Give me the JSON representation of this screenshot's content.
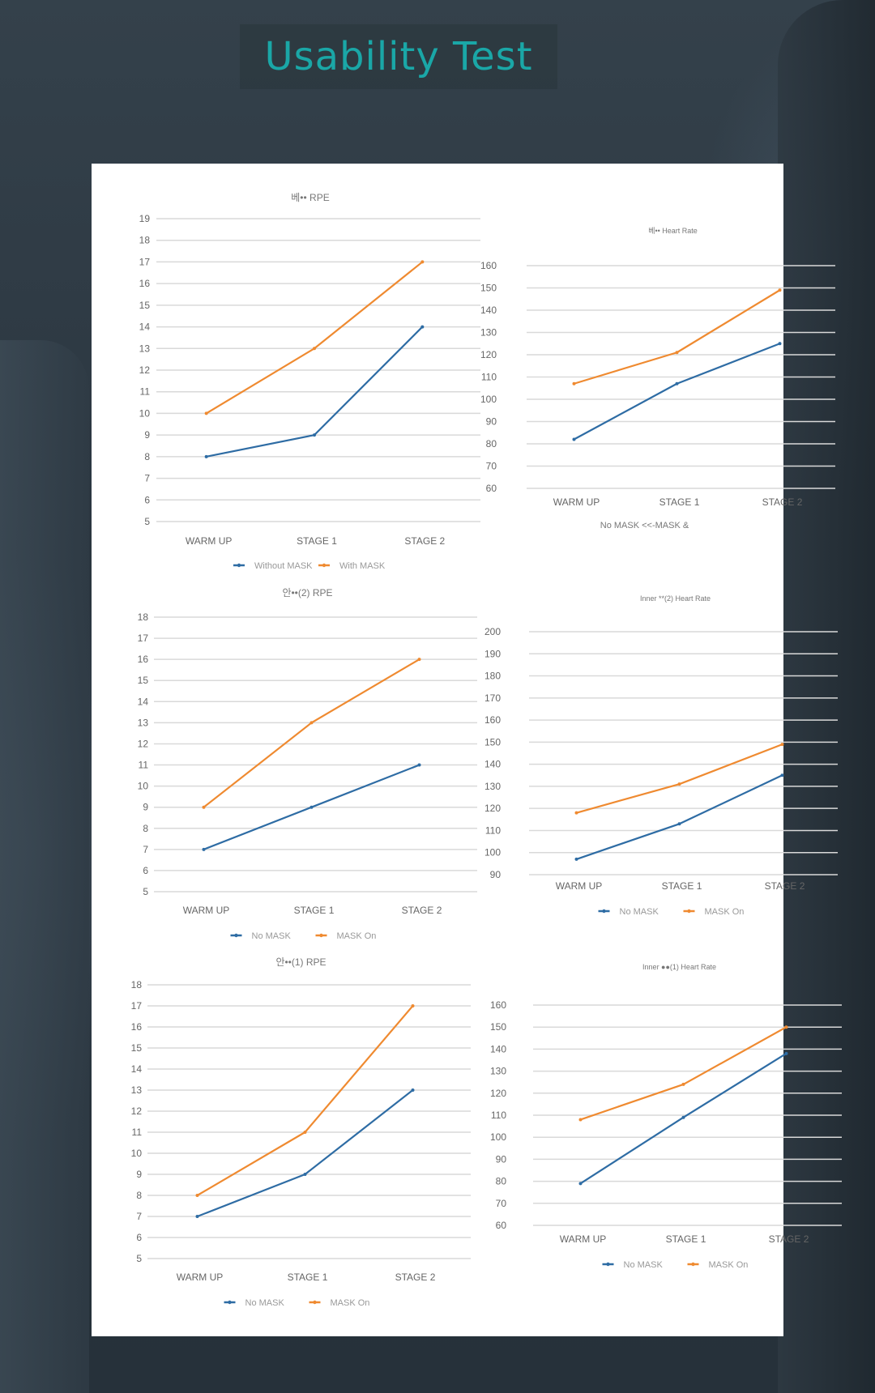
{
  "page": {
    "title": "Usability Test"
  },
  "colors": {
    "series_blue": "#2e6ca4",
    "series_orange": "#ef8a30",
    "title": "#1aa7a7",
    "grid": "#d9d9d9"
  },
  "chart_data": [
    {
      "type": "line",
      "title": "베•• RPE",
      "categories": [
        "WARM UP",
        "STAGE 1",
        "STAGE 2"
      ],
      "ylim": [
        5,
        19
      ],
      "yticks": [
        5,
        6,
        7,
        8,
        9,
        10,
        11,
        12,
        13,
        14,
        15,
        16,
        17,
        18,
        19
      ],
      "series": [
        {
          "name": "Without MASK",
          "values": [
            8,
            9,
            14
          ]
        },
        {
          "name": "With MASK",
          "values": [
            10,
            13,
            17
          ]
        }
      ],
      "grid": true,
      "legend": "bottom"
    },
    {
      "type": "line",
      "title": "베•• Heart Rate",
      "categories": [
        "WARM UP",
        "STAGE 1",
        "STAGE 2"
      ],
      "ylim": [
        60,
        160
      ],
      "yticks": [
        60,
        70,
        80,
        90,
        100,
        110,
        120,
        130,
        140,
        150,
        160
      ],
      "series": [
        {
          "values": [
            82,
            107,
            125
          ]
        },
        {
          "values": [
            107,
            121,
            149
          ]
        }
      ],
      "note": "No MASK <<-MASK &",
      "grid": true
    },
    {
      "type": "line",
      "title": "안••(2) RPE",
      "categories": [
        "WARM UP",
        "STAGE 1",
        "STAGE 2"
      ],
      "ylim": [
        5,
        18
      ],
      "yticks": [
        5,
        6,
        7,
        8,
        9,
        10,
        11,
        12,
        13,
        14,
        15,
        16,
        17,
        18
      ],
      "series": [
        {
          "name": "No MASK",
          "values": [
            7,
            9,
            11
          ]
        },
        {
          "name": "MASK On",
          "values": [
            9,
            13,
            16
          ]
        }
      ],
      "grid": true,
      "legend": "bottom"
    },
    {
      "type": "line",
      "title": "Inner **(2) Heart Rate",
      "categories": [
        "WARM UP",
        "STAGE 1",
        "STAGE 2"
      ],
      "ylim": [
        90,
        200
      ],
      "yticks": [
        90,
        100,
        110,
        120,
        130,
        140,
        150,
        160,
        170,
        180,
        190,
        200
      ],
      "series": [
        {
          "name": "No MASK",
          "values": [
            97,
            113,
            135
          ]
        },
        {
          "name": "MASK On",
          "values": [
            118,
            131,
            149
          ]
        }
      ],
      "grid": true,
      "legend": "bottom"
    },
    {
      "type": "line",
      "title": "안••(1) RPE",
      "categories": [
        "WARM UP",
        "STAGE 1",
        "STAGE 2"
      ],
      "ylim": [
        5,
        18
      ],
      "yticks": [
        5,
        6,
        7,
        8,
        9,
        10,
        11,
        12,
        13,
        14,
        15,
        16,
        17,
        18
      ],
      "series": [
        {
          "name": "No MASK",
          "values": [
            7,
            9,
            13
          ]
        },
        {
          "name": "MASK On",
          "values": [
            8,
            11,
            17
          ]
        }
      ],
      "grid": true,
      "legend": "bottom"
    },
    {
      "type": "line",
      "title": "Inner ●●(1) Heart Rate",
      "categories": [
        "WARM UP",
        "STAGE 1",
        "STAGE 2"
      ],
      "ylim": [
        60,
        160
      ],
      "yticks": [
        60,
        70,
        80,
        90,
        100,
        110,
        120,
        130,
        140,
        150,
        160
      ],
      "series": [
        {
          "name": "No MASK",
          "values": [
            79,
            109,
            138
          ]
        },
        {
          "name": "MASK On",
          "values": [
            108,
            124,
            150
          ]
        }
      ],
      "grid": true,
      "legend": "bottom"
    }
  ]
}
